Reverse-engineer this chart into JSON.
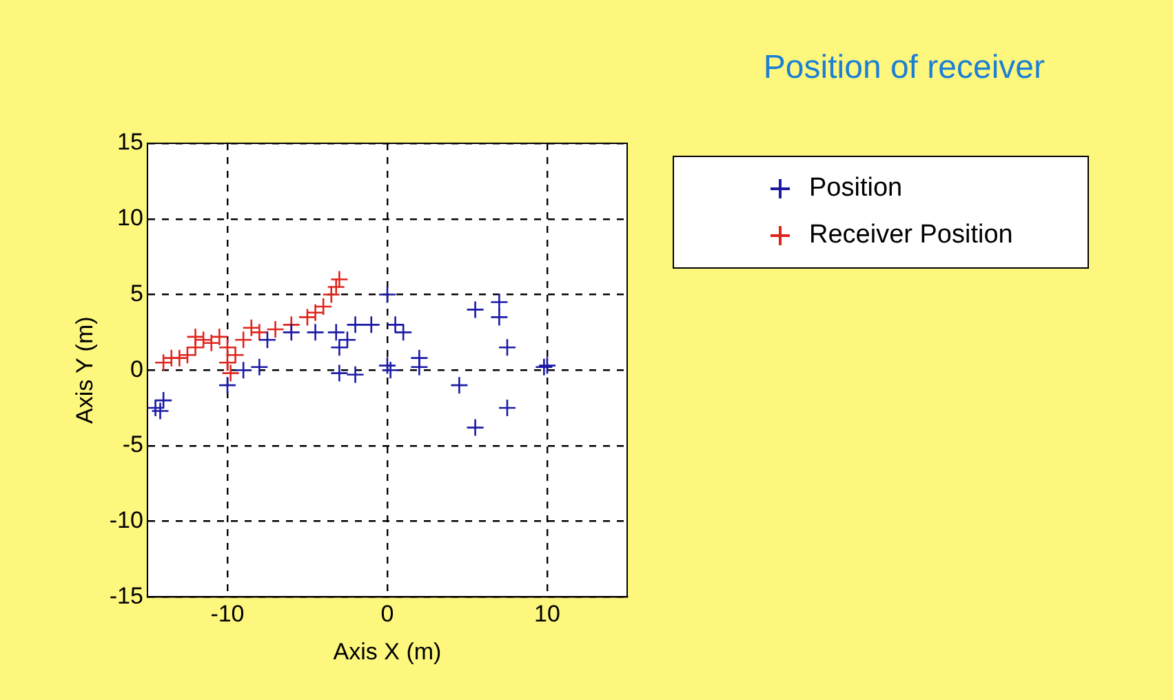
{
  "chart_data": {
    "type": "scatter",
    "title": "Position of receiver",
    "xlabel": "Axis X (m)",
    "ylabel": "Axis Y (m)",
    "xlim": [
      -15,
      15
    ],
    "xticks": [
      -10,
      0,
      10
    ],
    "ylim": [
      -15,
      15
    ],
    "yticks": [
      -15,
      -10,
      -5,
      0,
      5,
      10,
      15
    ],
    "grid": true,
    "legend": "top right",
    "marker": "cross",
    "series": [
      {
        "name": "Position",
        "color": "#1a1aa6",
        "x": [
          -14.5,
          -14,
          -14.2,
          -10,
          -9,
          -8,
          -7.5,
          -6,
          -4.5,
          -3,
          -3.2,
          -2.5,
          -2,
          -1,
          -3,
          -2,
          0,
          0,
          0.2,
          0.5,
          1,
          2,
          2,
          4.5,
          5.5,
          5.5,
          7,
          7,
          7.5,
          7.5,
          10,
          9.8
        ],
        "values": [
          -2.5,
          -2,
          -2.7,
          -1,
          0,
          0.2,
          2,
          2.5,
          2.5,
          1.5,
          2.5,
          2,
          3,
          3,
          -0.2,
          -0.3,
          5,
          0.3,
          0,
          3,
          2.5,
          0.2,
          0.8,
          -1,
          4,
          -3.8,
          4.5,
          3.5,
          1.5,
          -2.5,
          0.3,
          0.2
        ]
      },
      {
        "name": "Receiver Position",
        "color": "#e0241c",
        "x": [
          -14,
          -13.5,
          -13,
          -12.5,
          -12,
          -12,
          -11.5,
          -11,
          -10.5,
          -10,
          -10,
          -9.8,
          -9.5,
          -9,
          -8.5,
          -8,
          -7,
          -6,
          -5,
          -4.5,
          -4,
          -3.5,
          -3.2,
          -3
        ],
        "values": [
          0.5,
          0.8,
          0.8,
          1,
          1.5,
          2.2,
          2,
          1.8,
          2.2,
          1.5,
          0.5,
          -0.2,
          1,
          2,
          2.8,
          2.5,
          2.7,
          3,
          3.5,
          3.8,
          4.2,
          5,
          5.5,
          6
        ]
      }
    ]
  }
}
